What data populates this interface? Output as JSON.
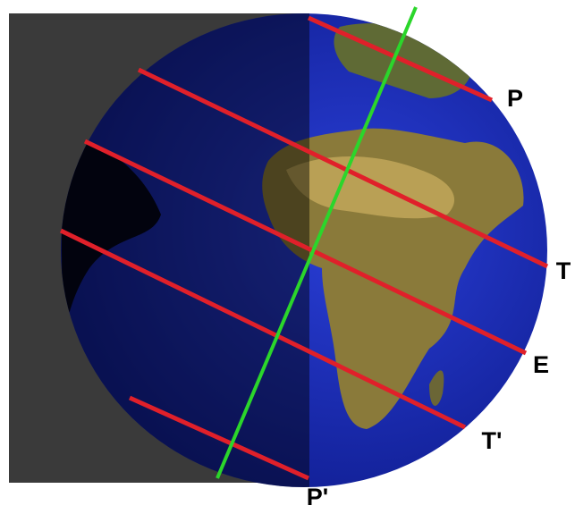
{
  "labels": {
    "north_pole": "P",
    "tropic_north": "T",
    "equator": "E",
    "tropic_south": "T'",
    "south_pole": "P'"
  }
}
